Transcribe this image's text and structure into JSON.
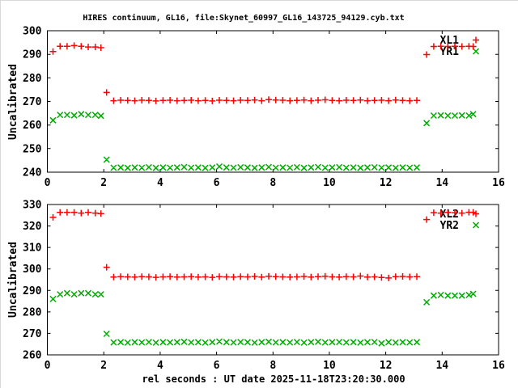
{
  "title": "HIRES continuum, GL16, file:Skynet_60997_GL16_143725_94129.cyb.txt",
  "xlabel": "rel seconds : UT date 2025-11-18T23:20:30.000",
  "colors": {
    "red": "#ff0000",
    "green": "#00aa00",
    "axis": "#000000",
    "background": "#ffffff"
  },
  "chart_data": [
    {
      "type": "scatter",
      "ylabel": "Uncalibrated",
      "xlim": [
        0,
        16
      ],
      "ylim": [
        240,
        300
      ],
      "xticks": [
        0,
        2,
        4,
        6,
        8,
        10,
        12,
        14,
        16
      ],
      "yticks": [
        240,
        250,
        260,
        270,
        280,
        290,
        300
      ],
      "grid": false,
      "legend_position": "top-right",
      "x": [
        0.2,
        0.45,
        0.7,
        0.95,
        1.2,
        1.45,
        1.7,
        1.9,
        2.1,
        2.35,
        2.6,
        2.85,
        3.1,
        3.35,
        3.6,
        3.85,
        4.1,
        4.35,
        4.6,
        4.85,
        5.1,
        5.35,
        5.6,
        5.85,
        6.1,
        6.35,
        6.6,
        6.85,
        7.1,
        7.35,
        7.6,
        7.85,
        8.1,
        8.35,
        8.6,
        8.85,
        9.1,
        9.35,
        9.6,
        9.85,
        10.1,
        10.35,
        10.6,
        10.85,
        11.1,
        11.35,
        11.6,
        11.85,
        12.1,
        12.35,
        12.6,
        12.85,
        13.1,
        13.45,
        13.7,
        13.95,
        14.2,
        14.45,
        14.7,
        14.95,
        15.1
      ],
      "series": [
        {
          "name": "XL1",
          "marker": "plus",
          "color": "#ff0000",
          "y": [
            291.2,
            293.4,
            293.4,
            293.7,
            293.4,
            293.1,
            293.1,
            292.8,
            273.8,
            270.3,
            270.5,
            270.4,
            270.3,
            270.5,
            270.4,
            270.2,
            270.4,
            270.5,
            270.3,
            270.4,
            270.5,
            270.3,
            270.4,
            270.2,
            270.5,
            270.4,
            270.3,
            270.5,
            270.4,
            270.6,
            270.3,
            270.8,
            270.6,
            270.5,
            270.3,
            270.4,
            270.6,
            270.3,
            270.5,
            270.7,
            270.4,
            270.3,
            270.5,
            270.4,
            270.6,
            270.3,
            270.4,
            270.5,
            270.3,
            270.6,
            270.4,
            270.3,
            270.4,
            289.9,
            293.3,
            293.4,
            293.3,
            293.4,
            293.3,
            293.4,
            293.3
          ]
        },
        {
          "name": "YR1",
          "marker": "cross",
          "color": "#00aa00",
          "y": [
            262.0,
            264.3,
            264.3,
            264.1,
            264.6,
            264.3,
            264.3,
            263.9,
            245.3,
            241.9,
            242.0,
            241.8,
            242.0,
            241.9,
            242.1,
            241.8,
            242.0,
            241.9,
            242.0,
            242.2,
            241.9,
            242.0,
            241.8,
            242.0,
            242.4,
            242.0,
            241.9,
            242.1,
            242.0,
            241.8,
            242.0,
            242.2,
            241.9,
            242.0,
            241.9,
            242.1,
            241.8,
            242.0,
            242.2,
            241.9,
            242.0,
            242.1,
            241.9,
            242.0,
            241.8,
            242.0,
            242.1,
            241.9,
            242.0,
            241.8,
            242.0,
            241.9,
            242.0,
            260.8,
            264.0,
            264.1,
            264.0,
            264.0,
            264.1,
            264.0,
            264.6
          ]
        }
      ]
    },
    {
      "type": "scatter",
      "ylabel": "Uncalibrated",
      "xlim": [
        0,
        16
      ],
      "ylim": [
        260,
        330
      ],
      "xticks": [
        0,
        2,
        4,
        6,
        8,
        10,
        12,
        14,
        16
      ],
      "yticks": [
        260,
        270,
        280,
        290,
        300,
        310,
        320,
        330
      ],
      "grid": false,
      "legend_position": "top-right",
      "x": [
        0.2,
        0.45,
        0.7,
        0.95,
        1.2,
        1.45,
        1.7,
        1.9,
        2.1,
        2.35,
        2.6,
        2.85,
        3.1,
        3.35,
        3.6,
        3.85,
        4.1,
        4.35,
        4.6,
        4.85,
        5.1,
        5.35,
        5.6,
        5.85,
        6.1,
        6.35,
        6.6,
        6.85,
        7.1,
        7.35,
        7.6,
        7.85,
        8.1,
        8.35,
        8.6,
        8.85,
        9.1,
        9.35,
        9.6,
        9.85,
        10.1,
        10.35,
        10.6,
        10.85,
        11.1,
        11.35,
        11.6,
        11.85,
        12.1,
        12.35,
        12.6,
        12.85,
        13.1,
        13.45,
        13.7,
        13.95,
        14.2,
        14.45,
        14.7,
        14.95,
        15.1
      ],
      "series": [
        {
          "name": "XL2",
          "marker": "plus",
          "color": "#ff0000",
          "y": [
            324.0,
            326.3,
            326.3,
            326.3,
            326.0,
            326.3,
            326.0,
            325.8,
            300.8,
            296.2,
            296.4,
            296.3,
            296.2,
            296.4,
            296.3,
            296.1,
            296.3,
            296.4,
            296.2,
            296.3,
            296.4,
            296.2,
            296.3,
            296.1,
            296.4,
            296.3,
            296.2,
            296.4,
            296.3,
            296.5,
            296.2,
            296.6,
            296.4,
            296.3,
            296.2,
            296.3,
            296.5,
            296.2,
            296.4,
            296.6,
            296.3,
            296.2,
            296.4,
            296.3,
            296.7,
            296.2,
            296.3,
            296.0,
            295.8,
            296.4,
            296.5,
            296.3,
            296.4,
            323.0,
            326.2,
            326.0,
            326.3,
            326.2,
            326.0,
            326.4,
            326.3
          ]
        },
        {
          "name": "YR2",
          "marker": "cross",
          "color": "#00aa00",
          "y": [
            286.0,
            288.2,
            288.7,
            288.2,
            288.7,
            288.7,
            288.2,
            288.2,
            269.8,
            265.8,
            265.9,
            265.7,
            265.9,
            265.8,
            266.0,
            265.7,
            265.9,
            265.8,
            265.9,
            266.1,
            265.8,
            265.9,
            265.7,
            265.9,
            266.2,
            265.9,
            265.8,
            266.0,
            265.9,
            265.7,
            265.9,
            266.1,
            265.8,
            265.9,
            265.8,
            266.0,
            265.7,
            265.9,
            266.1,
            265.8,
            265.9,
            266.0,
            265.8,
            265.9,
            265.7,
            265.9,
            266.0,
            265.4,
            265.9,
            265.7,
            265.9,
            265.8,
            265.9,
            284.5,
            287.6,
            287.9,
            287.6,
            287.6,
            287.6,
            287.9,
            288.4
          ]
        }
      ]
    }
  ]
}
